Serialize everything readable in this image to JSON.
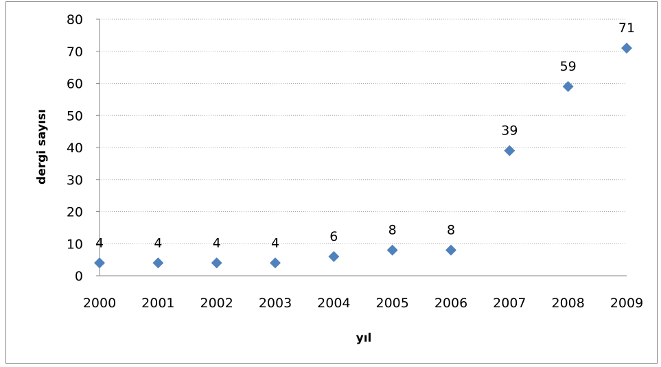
{
  "chart_data": {
    "type": "scatter",
    "title": "",
    "xlabel": "yıl",
    "ylabel": "dergi sayısı",
    "categories": [
      "2000",
      "2001",
      "2002",
      "2003",
      "2004",
      "2005",
      "2006",
      "2007",
      "2008",
      "2009"
    ],
    "series": [
      {
        "values": [
          4,
          4,
          4,
          4,
          6,
          8,
          8,
          39,
          59,
          71
        ]
      }
    ],
    "data_labels": [
      "4",
      "4",
      "4",
      "4",
      "6",
      "8",
      "8",
      "39",
      "59",
      "71"
    ],
    "ylim": [
      0,
      80
    ],
    "yticks": [
      "0",
      "10",
      "20",
      "30",
      "40",
      "50",
      "60",
      "70",
      "80"
    ],
    "grid": true,
    "legend": "none",
    "colors": {
      "marker": "#4f81bd",
      "grid": "#a6a6a6",
      "axis": "#868686"
    }
  }
}
